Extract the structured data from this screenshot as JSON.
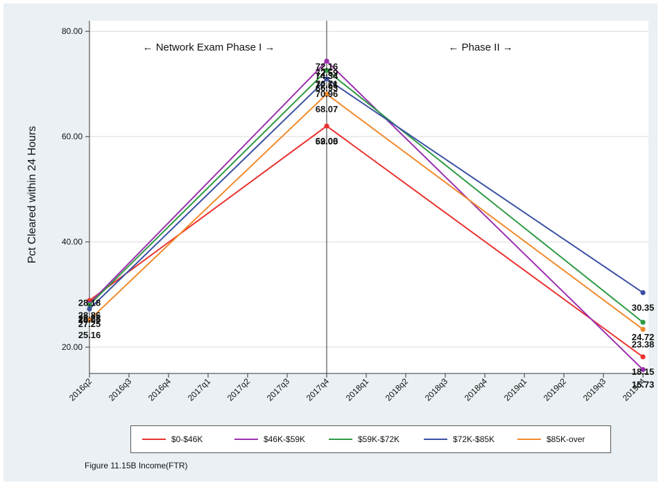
{
  "caption": "Figure 11.15B Income(FTR)",
  "chart_data": {
    "type": "line",
    "ylabel": "Pct Cleared within 24 Hours",
    "xlabel": "",
    "ylim": [
      15,
      82
    ],
    "yticks": [
      "20.00",
      "40.00",
      "60.00",
      "80.00"
    ],
    "ytick_values": [
      20,
      40,
      60,
      80
    ],
    "categories": [
      "2016q2",
      "2016q3",
      "2016q4",
      "2017q1",
      "2017q2",
      "2017q3",
      "2017q4",
      "2018q1",
      "2018q2",
      "2018q3",
      "2018q4",
      "2019q1",
      "2019q2",
      "2019q3",
      "2019q4"
    ],
    "grid": true,
    "legend_position": "bottom",
    "annotations": [
      {
        "text": "← Network Exam Phase I →",
        "at_category": "2017q4",
        "side": "left"
      },
      {
        "text": "← Phase II →",
        "at_category": "2017q4",
        "side": "right"
      }
    ],
    "vertical_line_at": "2017q4",
    "series": [
      {
        "name": "$0-$46K",
        "color": "#e8322f",
        "points": [
          {
            "x": "2016q2",
            "y": 28.86
          },
          {
            "x": "2017q4",
            "y": 62.0
          },
          {
            "x": "2019q4",
            "y": 18.15
          }
        ],
        "labels": [
          "28.86",
          "62.00",
          "18.15"
        ]
      },
      {
        "name": "$46K-$59K",
        "color": "#9b2fae",
        "points": [
          {
            "x": "2016q2",
            "y": 28.28
          },
          {
            "x": "2017q4",
            "y": 74.34
          },
          {
            "x": "2019q4",
            "y": 15.73
          }
        ],
        "labels": [
          "28.28",
          "74.34",
          "15.73"
        ]
      },
      {
        "name": "$59K-$72K",
        "color": "#2e9a44",
        "points": [
          {
            "x": "2016q2",
            "y": 28.05
          },
          {
            "x": "2017q4",
            "y": 72.56
          },
          {
            "x": "2019q4",
            "y": 24.72
          }
        ],
        "labels": [
          "28.05",
          "72.56",
          "24.72"
        ]
      },
      {
        "name": "$72K-$85K",
        "color": "#3a4fa3",
        "points": [
          {
            "x": "2016q2",
            "y": 27.25
          },
          {
            "x": "2017q4",
            "y": 70.96
          },
          {
            "x": "2019q4",
            "y": 30.35
          }
        ],
        "labels": [
          "27.25",
          "70.96",
          "30.35"
        ]
      },
      {
        "name": "$85K-over",
        "color": "#f0892b",
        "points": [
          {
            "x": "2016q2",
            "y": 25.16
          },
          {
            "x": "2017q4",
            "y": 68.07
          },
          {
            "x": "2019q4",
            "y": 23.38
          }
        ],
        "labels": [
          "25.16",
          "68.07",
          "23.38"
        ]
      }
    ],
    "extra_value_labels": [
      {
        "x": "2016q2",
        "text": "28.18"
      },
      {
        "x": "2017q4",
        "text": "72.16"
      },
      {
        "x": "2017q4",
        "text": "72.59"
      },
      {
        "x": "2017q4",
        "text": "70.71"
      },
      {
        "x": "2017q4",
        "text": "66.93"
      },
      {
        "x": "2017q4",
        "text": "59.05"
      }
    ]
  }
}
